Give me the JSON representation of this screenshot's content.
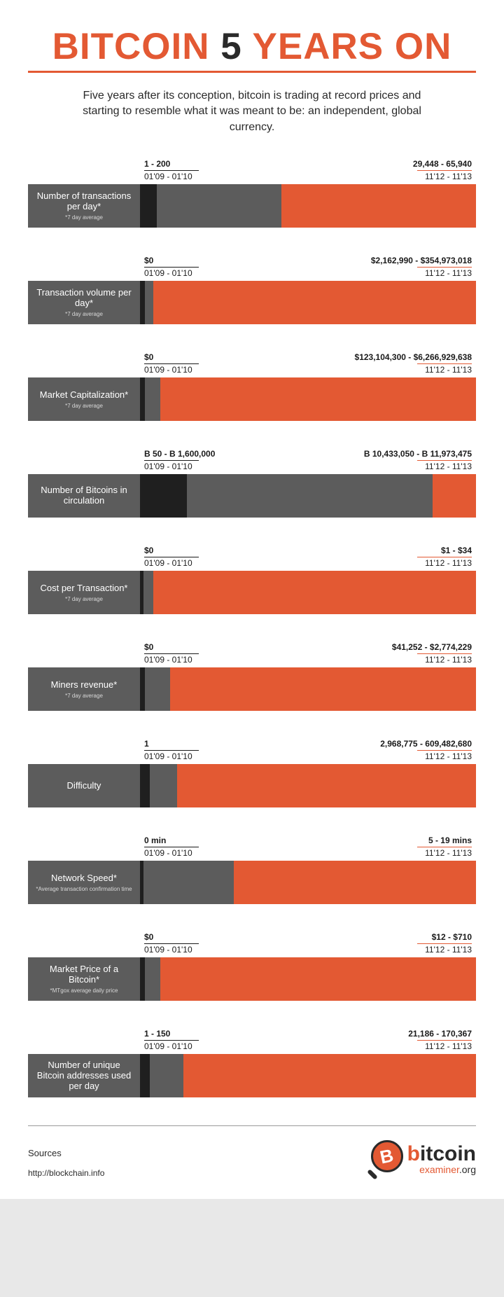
{
  "colors": {
    "accent": "#e35933",
    "dark": "#2a2a2a",
    "label_bg": "#5c5c5c",
    "seg_black": "#1f1f1f",
    "seg_gray": "#5c5c5c",
    "seg_orange": "#e35933",
    "page_bg": "#ffffff",
    "body_bg": "#e8e8e8"
  },
  "title": {
    "word1": "BITCOIN",
    "word2": "5",
    "word3": "YEARS ON",
    "fontsize": 53
  },
  "intro": "Five years after its conception, bitcoin is trading at record prices and starting to resemble what it was meant to be: an independent, global currency.",
  "periods": {
    "early": "01'09 - 01'10",
    "late": "11'12 - 11'13"
  },
  "metrics": [
    {
      "name": "Number of transactions per day*",
      "note": "*7 day average",
      "early_value": "1 - 200",
      "late_value": "29,448 - 65,940",
      "segments": [
        {
          "color": "#1f1f1f",
          "pct": 5
        },
        {
          "color": "#5c5c5c",
          "pct": 37
        },
        {
          "color": "#e35933",
          "pct": 58
        }
      ]
    },
    {
      "name": "Transaction volume per day*",
      "note": "*7 day average",
      "early_value": "$0",
      "late_value": "$2,162,990 - $354,973,018",
      "segments": [
        {
          "color": "#1f1f1f",
          "pct": 1.5
        },
        {
          "color": "#5c5c5c",
          "pct": 2.5
        },
        {
          "color": "#e35933",
          "pct": 96
        }
      ]
    },
    {
      "name": "Market Capitalization*",
      "note": "*7 day average",
      "early_value": "$0",
      "late_value": "$123,104,300 - $6,266,929,638",
      "segments": [
        {
          "color": "#1f1f1f",
          "pct": 1.5
        },
        {
          "color": "#5c5c5c",
          "pct": 4.5
        },
        {
          "color": "#e35933",
          "pct": 94
        }
      ]
    },
    {
      "name": "Number of Bitcoins in circulation",
      "note": "",
      "early_value": "B 50 - B 1,600,000",
      "late_value": "B 10,433,050 - B 11,973,475",
      "segments": [
        {
          "color": "#1f1f1f",
          "pct": 14
        },
        {
          "color": "#5c5c5c",
          "pct": 73
        },
        {
          "color": "#e35933",
          "pct": 13
        }
      ]
    },
    {
      "name": "Cost per Transaction*",
      "note": "*7 day average",
      "early_value": "$0",
      "late_value": "$1 - $34",
      "segments": [
        {
          "color": "#1f1f1f",
          "pct": 1
        },
        {
          "color": "#5c5c5c",
          "pct": 3
        },
        {
          "color": "#e35933",
          "pct": 96
        }
      ]
    },
    {
      "name": "Miners revenue*",
      "note": "*7 day average",
      "early_value": "$0",
      "late_value": "$41,252 - $2,774,229",
      "segments": [
        {
          "color": "#1f1f1f",
          "pct": 1.5
        },
        {
          "color": "#5c5c5c",
          "pct": 7.5
        },
        {
          "color": "#e35933",
          "pct": 91
        }
      ]
    },
    {
      "name": "Difficulty",
      "note": "",
      "early_value": "1",
      "late_value": "2,968,775 - 609,482,680",
      "segments": [
        {
          "color": "#1f1f1f",
          "pct": 3
        },
        {
          "color": "#5c5c5c",
          "pct": 8
        },
        {
          "color": "#e35933",
          "pct": 89
        }
      ]
    },
    {
      "name": "Network Speed*",
      "note": "*Average transaction confirmation time",
      "early_value": "0 min",
      "late_value": "5 - 19 mins",
      "segments": [
        {
          "color": "#1f1f1f",
          "pct": 1
        },
        {
          "color": "#5c5c5c",
          "pct": 27
        },
        {
          "color": "#e35933",
          "pct": 72
        }
      ]
    },
    {
      "name": "Market Price of a Bitcoin*",
      "note": "*MTgox average daily price",
      "early_value": "$0",
      "late_value": "$12 - $710",
      "segments": [
        {
          "color": "#1f1f1f",
          "pct": 1.5
        },
        {
          "color": "#5c5c5c",
          "pct": 4.5
        },
        {
          "color": "#e35933",
          "pct": 94
        }
      ]
    },
    {
      "name": "Number of unique Bitcoin addresses used per day",
      "note": "",
      "early_value": "1 - 150",
      "late_value": "21,186 - 170,367",
      "segments": [
        {
          "color": "#1f1f1f",
          "pct": 3
        },
        {
          "color": "#5c5c5c",
          "pct": 10
        },
        {
          "color": "#e35933",
          "pct": 87
        }
      ]
    }
  ],
  "sources": {
    "title": "Sources",
    "url": "http://blockchain.info"
  },
  "logo": {
    "glyph": "B",
    "text_b": "b",
    "text_rest": "itcoin",
    "sub": "examiner",
    "sub_ext": ".org"
  }
}
